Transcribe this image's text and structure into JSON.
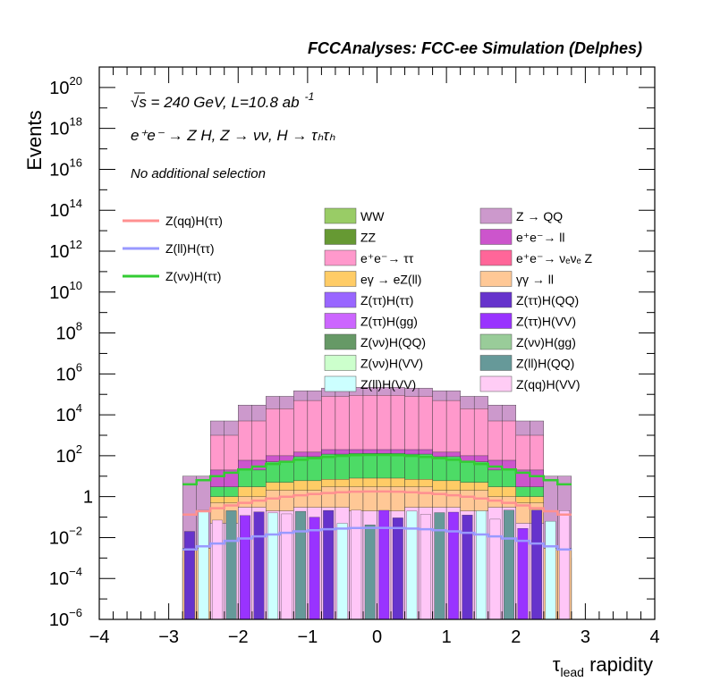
{
  "header": {
    "title": "FCCAnalyses: FCC-ee Simulation (Delphes)"
  },
  "annotations": {
    "energy_line": "√s = 240 GeV, L=10.8 ab",
    "energy_sup": "-1",
    "process": "e⁺e⁻ → Z H, Z → νν, H → τₕτₕ",
    "selection": "No additional selection"
  },
  "chart_data": {
    "type": "histogram-stack",
    "xlabel": "τlead rapidity",
    "ylabel": "Events",
    "xlim": [
      -4,
      4
    ],
    "ylim": [
      1e-06,
      1e+21
    ],
    "yscale": "log",
    "x_ticks": [
      "−4",
      "−3",
      "−2",
      "−1",
      "0",
      "1",
      "2",
      "3",
      "4"
    ],
    "y_ticks": [
      {
        "base": "10",
        "exp": "20",
        "value": 1e+20
      },
      {
        "base": "10",
        "exp": "18",
        "value": 1e+18
      },
      {
        "base": "10",
        "exp": "16",
        "value": 1e+16
      },
      {
        "base": "10",
        "exp": "14",
        "value": 100000000000000.0
      },
      {
        "base": "10",
        "exp": "12",
        "value": 1000000000000.0
      },
      {
        "base": "10",
        "exp": "10",
        "value": 10000000000.0
      },
      {
        "base": "10",
        "exp": "8",
        "value": 100000000.0
      },
      {
        "base": "10",
        "exp": "6",
        "value": 1000000.0
      },
      {
        "base": "10",
        "exp": "4",
        "value": 10000.0
      },
      {
        "base": "10",
        "exp": "2",
        "value": 100
      },
      {
        "base": "1",
        "exp": "",
        "value": 1
      },
      {
        "base": "10",
        "exp": "−2",
        "value": 0.01
      },
      {
        "base": "10",
        "exp": "−4",
        "value": 0.0001
      },
      {
        "base": "10",
        "exp": "−6",
        "value": 1e-06
      }
    ],
    "stack_bins_x": [
      -2.8,
      -2.6,
      -2.4,
      -2.2,
      -2.0,
      -1.8,
      -1.6,
      -1.4,
      -1.2,
      -1.0,
      -0.8,
      -0.6,
      -0.4,
      -0.2,
      0.0,
      0.2,
      0.4,
      0.6,
      0.8,
      1.0,
      1.2,
      1.4,
      1.6,
      1.8,
      2.0,
      2.2,
      2.4,
      2.6,
      2.8
    ],
    "stack_top_series": [
      {
        "name": "Z(qq)H(VV)",
        "color": "#ffc6f7",
        "values": [
          0,
          0,
          0.05,
          0.05,
          0.3,
          0.3,
          0.2,
          0.2,
          0.3,
          0.3,
          0.3,
          0.3,
          0.2,
          0.2,
          0.2,
          0.2,
          0.3,
          0.3,
          0.3,
          0.3,
          0.2,
          0.2,
          0.3,
          0.3,
          0.05,
          0.05,
          0,
          0
        ]
      },
      {
        "name": "γγ → ll",
        "color": "#ffc896",
        "values": [
          0.003,
          0.003,
          0.5,
          0.5,
          1,
          1,
          2,
          2,
          2,
          2,
          3,
          3,
          3,
          3,
          3,
          3,
          3,
          3,
          2,
          2,
          2,
          2,
          1,
          1,
          0.5,
          0.5,
          0.003,
          0.003
        ]
      },
      {
        "name": "eγ → eZ(ll)",
        "color": "#ffcc66",
        "values": [
          0.003,
          0.003,
          1,
          1,
          3,
          3,
          5,
          5,
          6,
          6,
          7,
          7,
          8,
          8,
          8,
          8,
          7,
          7,
          6,
          6,
          5,
          5,
          3,
          3,
          1,
          1,
          0.003,
          0.003
        ]
      },
      {
        "name": "Z(νν)H(ττ)",
        "color": "#4ddb66",
        "values": [
          0.001,
          0.001,
          3,
          3,
          20,
          20,
          50,
          50,
          90,
          90,
          120,
          120,
          130,
          130,
          130,
          130,
          120,
          120,
          90,
          90,
          50,
          50,
          20,
          20,
          3,
          3,
          0.001,
          0.001
        ]
      },
      {
        "name": "e⁺e⁻ → ll",
        "color": "#cc55cc",
        "values": [
          0,
          0,
          20,
          20,
          60,
          60,
          100,
          100,
          150,
          150,
          200,
          200,
          200,
          200,
          200,
          200,
          200,
          200,
          150,
          150,
          100,
          100,
          60,
          60,
          20,
          20,
          0,
          0
        ]
      },
      {
        "name": "e⁺e⁻ → ττ",
        "color": "#ff99cc",
        "values": [
          0,
          0,
          1000,
          1000,
          5000,
          5000,
          20000,
          20000,
          50000,
          50000,
          80000,
          80000,
          90000,
          90000,
          90000,
          90000,
          80000,
          80000,
          50000,
          50000,
          20000,
          20000,
          5000,
          5000,
          1000,
          1000,
          0,
          0
        ]
      },
      {
        "name": "Z → QQ",
        "color": "#cc99cc",
        "values": [
          10,
          10,
          5000,
          5000,
          30000,
          30000,
          80000,
          80000,
          150000,
          150000,
          200000,
          200000,
          220000,
          220000,
          220000,
          220000,
          200000,
          200000,
          150000,
          150000,
          80000,
          80000,
          30000,
          30000,
          5000,
          5000,
          10,
          10
        ]
      }
    ],
    "legend": [
      {
        "name": "Z(qq)H(ττ)",
        "color": "#ff9090",
        "kind": "line"
      },
      {
        "name": "Z(ll)H(ττ)",
        "color": "#9999ff",
        "kind": "line"
      },
      {
        "name": "Z(νν)H(ττ)",
        "color": "#33cc33",
        "kind": "line"
      },
      {
        "name": "WW",
        "color": "#99cc66",
        "kind": "box"
      },
      {
        "name": "Z → QQ",
        "color": "#cc99cc",
        "kind": "box"
      },
      {
        "name": "ZZ",
        "color": "#669933",
        "kind": "box"
      },
      {
        "name": "e⁺e⁻→ ll",
        "color": "#cc55cc",
        "kind": "box"
      },
      {
        "name": "e⁺e⁻→ ττ",
        "color": "#ff99cc",
        "kind": "box"
      },
      {
        "name": "e⁺e⁻→ νₑνₑ Z",
        "color": "#ff6699",
        "kind": "box"
      },
      {
        "name": "eγ → eZ(ll)",
        "color": "#ffcc66",
        "kind": "box"
      },
      {
        "name": "γγ → ll",
        "color": "#ffc896",
        "kind": "box"
      },
      {
        "name": "Z(ττ)H(ττ)",
        "color": "#9966ff",
        "kind": "box"
      },
      {
        "name": "Z(ττ)H(QQ)",
        "color": "#6633cc",
        "kind": "box"
      },
      {
        "name": "Z(ττ)H(gg)",
        "color": "#cc66ff",
        "kind": "box"
      },
      {
        "name": "Z(ττ)H(VV)",
        "color": "#9933ff",
        "kind": "box"
      },
      {
        "name": "Z(νν)H(QQ)",
        "color": "#669966",
        "kind": "box"
      },
      {
        "name": "Z(νν)H(gg)",
        "color": "#99cc99",
        "kind": "box"
      },
      {
        "name": "Z(νν)H(VV)",
        "color": "#ccffcc",
        "kind": "box"
      },
      {
        "name": "Z(ll)H(QQ)",
        "color": "#669999",
        "kind": "box"
      },
      {
        "name": "Z(ll)H(VV)",
        "color": "#ccffff",
        "kind": "box"
      },
      {
        "name": "Z(qq)H(VV)",
        "color": "#ffccf5",
        "kind": "box"
      }
    ]
  }
}
